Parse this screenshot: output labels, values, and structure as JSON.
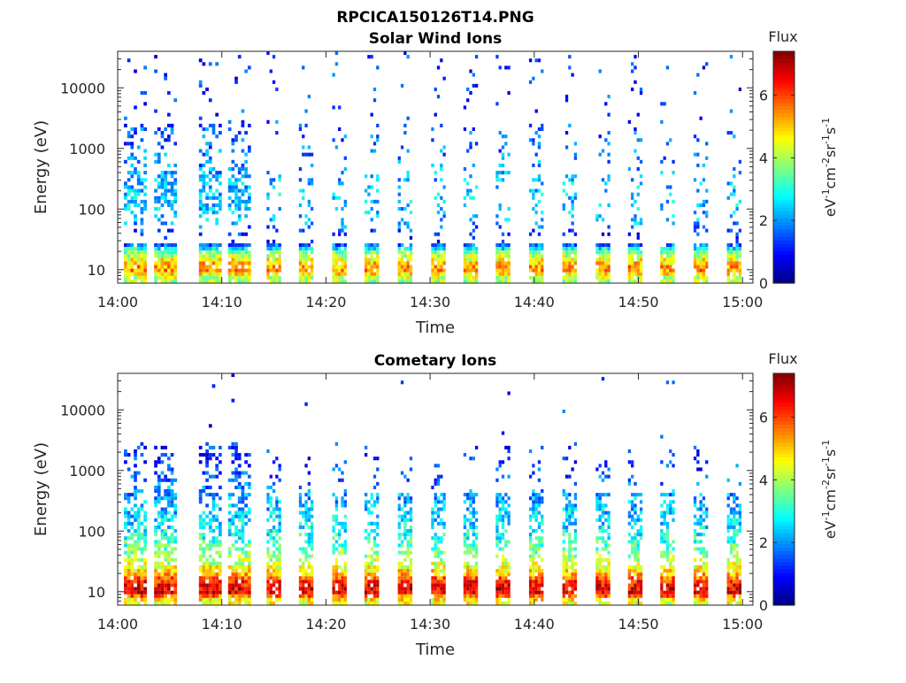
{
  "figure": {
    "title": "RPCICA150126T14.PNG"
  },
  "chart_data": [
    {
      "type": "heatmap",
      "title": "Solar Wind Ions",
      "xlabel": "Time",
      "ylabel": "Energy (eV)",
      "x_ticks": [
        "14:00",
        "14:10",
        "14:20",
        "14:30",
        "14:40",
        "14:50",
        "15:00"
      ],
      "x_range": [
        "14:00",
        "15:01"
      ],
      "y_scale": "log",
      "y_ticks": [
        10,
        100,
        1000,
        10000
      ],
      "y_tick_labels": [
        "10",
        "100",
        "1000",
        "10000"
      ],
      "y_range": [
        6,
        40000
      ],
      "colorbar": {
        "title": "Flux",
        "label": "eV-1cm-2sr-1s-1",
        "ticks": [
          0,
          2,
          4,
          6
        ],
        "range": [
          0,
          7.4
        ],
        "colormap": "jet"
      },
      "sweep_times_min": [
        1.7,
        4.6,
        8.9,
        11.7,
        15.0,
        18.1,
        21.3,
        24.4,
        27.6,
        30.8,
        33.9,
        37.0,
        40.2,
        43.4,
        46.6,
        49.7,
        52.8,
        56.0,
        59.2
      ],
      "profile": {
        "energy_eV": [
          7,
          10,
          13,
          20,
          30,
          60,
          120,
          250,
          600,
          1500,
          5000,
          20000,
          40000
        ],
        "flux": [
          4.0,
          5.5,
          5.0,
          3.5,
          0.5,
          2.2,
          2.4,
          2.3,
          1.9,
          1.6,
          1.3,
          1.3,
          1.2
        ]
      }
    },
    {
      "type": "heatmap",
      "title": "Cometary Ions",
      "xlabel": "Time",
      "ylabel": "Energy (eV)",
      "x_ticks": [
        "14:00",
        "14:10",
        "14:20",
        "14:30",
        "14:40",
        "14:50",
        "15:00"
      ],
      "x_range": [
        "14:00",
        "15:01"
      ],
      "y_scale": "log",
      "y_ticks": [
        10,
        100,
        1000,
        10000
      ],
      "y_tick_labels": [
        "10",
        "100",
        "1000",
        "10000"
      ],
      "y_range": [
        6,
        40000
      ],
      "colorbar": {
        "title": "Flux",
        "label": "eV-1cm-2sr-1s-1",
        "ticks": [
          0,
          2,
          4,
          6
        ],
        "range": [
          0,
          7.4
        ],
        "colormap": "jet"
      },
      "sweep_times_min": [
        1.7,
        4.6,
        8.9,
        11.7,
        15.0,
        18.1,
        21.3,
        24.4,
        27.6,
        30.8,
        33.9,
        37.0,
        40.2,
        43.4,
        46.6,
        49.7,
        52.8,
        56.0,
        59.2
      ],
      "profile": {
        "energy_eV": [
          7,
          10,
          15,
          20,
          30,
          50,
          80,
          150,
          300,
          600,
          1000,
          2000
        ],
        "flux": [
          4.5,
          6.8,
          6.2,
          5.0,
          4.2,
          3.5,
          2.9,
          2.5,
          2.2,
          1.8,
          1.5,
          1.2
        ]
      }
    }
  ]
}
